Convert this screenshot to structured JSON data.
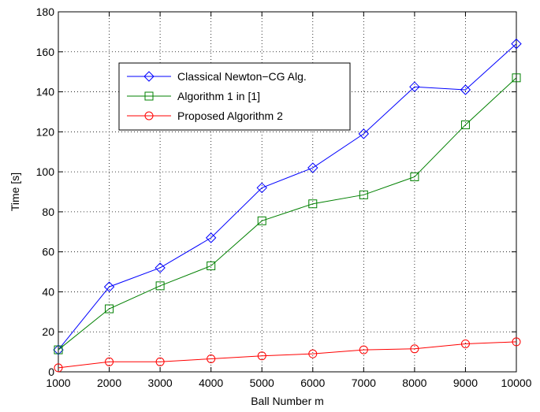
{
  "chart_data": {
    "type": "line",
    "title": "",
    "xlabel": "Ball Number m",
    "ylabel": "Time [s]",
    "xlim": [
      1000,
      10000
    ],
    "ylim": [
      0,
      180
    ],
    "xticks": [
      1000,
      2000,
      3000,
      4000,
      5000,
      6000,
      7000,
      8000,
      9000,
      10000
    ],
    "yticks": [
      0,
      20,
      40,
      60,
      80,
      100,
      120,
      140,
      160,
      180
    ],
    "grid": true,
    "legend_position": "top-left",
    "x": [
      1000,
      2000,
      3000,
      4000,
      5000,
      6000,
      7000,
      8000,
      9000,
      10000
    ],
    "series": [
      {
        "name": "Classical Newton−CG Alg.",
        "color": "#0000ff",
        "marker": "diamond",
        "values": [
          11,
          42.5,
          52,
          67,
          92,
          102,
          119,
          142.5,
          141,
          164
        ]
      },
      {
        "name": "Algorithm 1 in [1]",
        "color": "#008000",
        "marker": "square",
        "values": [
          11,
          31.5,
          43,
          53,
          75.5,
          84,
          88.5,
          97.5,
          123.5,
          147
        ]
      },
      {
        "name": "Proposed Algorithm 2",
        "color": "#ff0000",
        "marker": "circle",
        "values": [
          2,
          5,
          5,
          6.5,
          8,
          9,
          11,
          11.5,
          14,
          15
        ]
      }
    ]
  }
}
